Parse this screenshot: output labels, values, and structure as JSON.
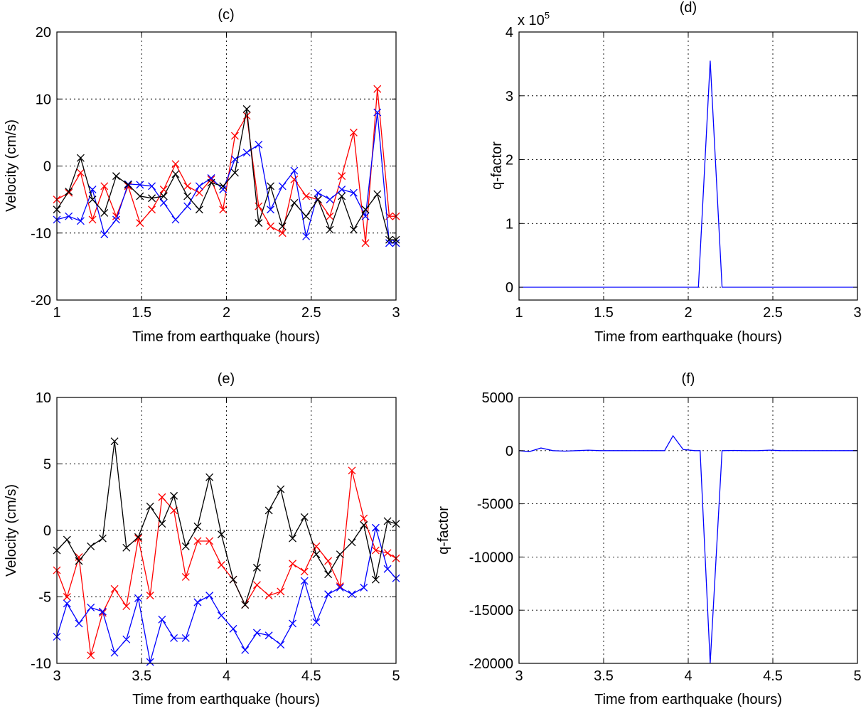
{
  "chart_data": [
    {
      "id": "c",
      "type": "line",
      "title": "(c)",
      "xlabel": "Time from earthquake (hours)",
      "ylabel": "Velocity (cm/s)",
      "xlim": [
        1,
        3
      ],
      "ylim": [
        -20,
        20
      ],
      "xticks": [
        1,
        1.5,
        2,
        2.5,
        3
      ],
      "xtick_labels": [
        "1",
        "1.5",
        "2",
        "2.5",
        "3"
      ],
      "yticks": [
        -20,
        -10,
        0,
        10,
        20
      ],
      "ytick_labels": [
        "-20",
        "-10",
        "0",
        "10",
        "20"
      ],
      "grid": true,
      "markers": "x",
      "series": [
        {
          "name": "red",
          "color": "#ff0000",
          "x": [
            1.0,
            1.07,
            1.14,
            1.21,
            1.28,
            1.35,
            1.42,
            1.49,
            1.56,
            1.63,
            1.7,
            1.77,
            1.84,
            1.91,
            1.98,
            2.05,
            2.12,
            2.19,
            2.26,
            2.33,
            2.4,
            2.47,
            2.54,
            2.61,
            2.68,
            2.75,
            2.82,
            2.89,
            2.96,
            3.0
          ],
          "y": [
            -5,
            -4,
            -1,
            -8,
            -3,
            -7.5,
            -3,
            -8.5,
            -6.5,
            -3.5,
            0.3,
            -3,
            -4,
            -2,
            -6.5,
            4.5,
            7.5,
            -6,
            -9,
            -10,
            -2,
            -4.5,
            -5,
            -7.5,
            -1.5,
            5,
            -11.5,
            11.5,
            -7.5,
            -7.5
          ]
        },
        {
          "name": "blue",
          "color": "#0000ff",
          "x": [
            1.0,
            1.07,
            1.14,
            1.21,
            1.28,
            1.35,
            1.42,
            1.49,
            1.56,
            1.63,
            1.7,
            1.77,
            1.84,
            1.91,
            1.98,
            2.05,
            2.12,
            2.19,
            2.26,
            2.33,
            2.4,
            2.47,
            2.54,
            2.61,
            2.68,
            2.75,
            2.82,
            2.89,
            2.96,
            3.0
          ],
          "y": [
            -8,
            -7.5,
            -8.2,
            -3.5,
            -10.2,
            -8,
            -2.7,
            -2.8,
            -3,
            -5.5,
            -8,
            -6,
            -3,
            -1.8,
            -3.5,
            1,
            2,
            3.2,
            -6.5,
            -3,
            -0.7,
            -10.5,
            -4,
            -5,
            -3.5,
            -4,
            -7.5,
            8,
            -11.5,
            -11.5
          ]
        },
        {
          "name": "black",
          "color": "#000000",
          "x": [
            1.0,
            1.07,
            1.14,
            1.21,
            1.28,
            1.35,
            1.42,
            1.49,
            1.56,
            1.63,
            1.7,
            1.77,
            1.84,
            1.91,
            1.98,
            2.05,
            2.12,
            2.19,
            2.26,
            2.33,
            2.4,
            2.47,
            2.54,
            2.61,
            2.68,
            2.75,
            2.82,
            2.89,
            2.96,
            3.0
          ],
          "y": [
            -6.5,
            -3.8,
            1.2,
            -5,
            -7,
            -1.5,
            -2.8,
            -4.5,
            -4.8,
            -4.5,
            -1.2,
            -4.5,
            -6.5,
            -2.5,
            -3,
            -1,
            8.5,
            -8.5,
            -3,
            -9,
            -5.5,
            -7.5,
            -5,
            -9.5,
            -4.5,
            -9.5,
            -6.5,
            -4.2,
            -11,
            -11
          ]
        }
      ]
    },
    {
      "id": "d",
      "type": "line",
      "title": "(d)",
      "xlabel": "Time from earthquake (hours)",
      "ylabel": "q-factor",
      "multiplier_label": "x 10",
      "multiplier_exponent": "5",
      "xlim": [
        1,
        3
      ],
      "ylim": [
        -0.2,
        4
      ],
      "xticks": [
        1,
        1.5,
        2,
        2.5,
        3
      ],
      "xtick_labels": [
        "1",
        "1.5",
        "2",
        "2.5",
        "3"
      ],
      "yticks": [
        0,
        1,
        2,
        3,
        4
      ],
      "ytick_labels": [
        "0",
        "1",
        "2",
        "3",
        "4"
      ],
      "grid": true,
      "markers": "none",
      "series": [
        {
          "name": "q",
          "color": "#0000ff",
          "x": [
            1.0,
            2.06,
            2.13,
            2.2,
            3.0
          ],
          "y": [
            0,
            0,
            3.55,
            0,
            0
          ]
        }
      ]
    },
    {
      "id": "e",
      "type": "line",
      "title": "(e)",
      "xlabel": "Time from earthquake (hours)",
      "ylabel": "Velocity (cm/s)",
      "xlim": [
        3,
        5
      ],
      "ylim": [
        -10,
        10
      ],
      "xticks": [
        3,
        3.5,
        4,
        4.5,
        5
      ],
      "xtick_labels": [
        "3",
        "3.5",
        "4",
        "4.5",
        "5"
      ],
      "yticks": [
        -10,
        -5,
        0,
        5,
        10
      ],
      "ytick_labels": [
        "-10",
        "-5",
        "0",
        "5",
        "10"
      ],
      "grid": true,
      "markers": "x",
      "series": [
        {
          "name": "red",
          "color": "#ff0000",
          "x": [
            3.0,
            3.06,
            3.13,
            3.2,
            3.27,
            3.34,
            3.41,
            3.48,
            3.55,
            3.62,
            3.69,
            3.76,
            3.83,
            3.9,
            3.97,
            4.04,
            4.11,
            4.18,
            4.25,
            4.32,
            4.39,
            4.46,
            4.53,
            4.6,
            4.67,
            4.74,
            4.81,
            4.88,
            4.95,
            5.0
          ],
          "y": [
            -3,
            -5,
            -2,
            -9.4,
            -6.2,
            -4.4,
            -5.7,
            -0.6,
            -4.9,
            2.5,
            1.5,
            -3.5,
            -0.8,
            -0.8,
            -2.6,
            -3.7,
            -5.6,
            -4.1,
            -4.9,
            -4.6,
            -2.5,
            -3.1,
            -1.2,
            -2.3,
            -4.2,
            4.5,
            0.9,
            -1.5,
            -1.7,
            -2.1
          ]
        },
        {
          "name": "blue",
          "color": "#0000ff",
          "x": [
            3.0,
            3.06,
            3.13,
            3.2,
            3.27,
            3.34,
            3.41,
            3.48,
            3.55,
            3.62,
            3.69,
            3.76,
            3.83,
            3.9,
            3.97,
            4.04,
            4.11,
            4.18,
            4.25,
            4.32,
            4.39,
            4.46,
            4.53,
            4.6,
            4.67,
            4.74,
            4.81,
            4.88,
            4.95,
            5.0
          ],
          "y": [
            -8,
            -5.5,
            -7,
            -5.8,
            -6.1,
            -9.2,
            -8.2,
            -5.1,
            -9.9,
            -6.7,
            -8.1,
            -8.1,
            -5.4,
            -4.9,
            -6.4,
            -7.4,
            -9,
            -7.7,
            -7.9,
            -8.6,
            -7,
            -3.8,
            -6.9,
            -4.8,
            -4.3,
            -4.8,
            -4.3,
            0.2,
            -2.9,
            -3.6
          ]
        },
        {
          "name": "black",
          "color": "#000000",
          "x": [
            3.0,
            3.06,
            3.13,
            3.2,
            3.27,
            3.34,
            3.41,
            3.48,
            3.55,
            3.62,
            3.69,
            3.76,
            3.83,
            3.9,
            3.97,
            4.04,
            4.11,
            4.18,
            4.25,
            4.32,
            4.39,
            4.46,
            4.53,
            4.6,
            4.67,
            4.74,
            4.81,
            4.88,
            4.95,
            5.0
          ],
          "y": [
            -1.5,
            -0.7,
            -2.3,
            -1.2,
            -0.6,
            6.7,
            -1.3,
            -0.5,
            1.8,
            0.5,
            2.6,
            -1.2,
            0.3,
            4,
            -0.3,
            -3.7,
            -5.6,
            -2.8,
            1.5,
            3.1,
            -0.6,
            1,
            -1.8,
            -3.3,
            -1.8,
            -0.9,
            0.4,
            -3.7,
            0.7,
            0.5
          ]
        }
      ]
    },
    {
      "id": "f",
      "type": "line",
      "title": "(f)",
      "xlabel": "Time from earthquake (hours)",
      "ylabel": "q-factor",
      "xlim": [
        3,
        5
      ],
      "ylim": [
        -20000,
        5000
      ],
      "xticks": [
        3,
        3.5,
        4,
        4.5,
        5
      ],
      "xtick_labels": [
        "3",
        "3.5",
        "4",
        "4.5",
        "5"
      ],
      "yticks": [
        -20000,
        -15000,
        -10000,
        -5000,
        0,
        5000
      ],
      "ytick_labels": [
        "-20000",
        "-15000",
        "-10000",
        "-5000",
        "0",
        "5000"
      ],
      "grid": true,
      "markers": "none",
      "series": [
        {
          "name": "q",
          "color": "#0000ff",
          "x": [
            3.0,
            3.06,
            3.13,
            3.2,
            3.27,
            3.34,
            3.41,
            3.48,
            3.55,
            3.62,
            3.69,
            3.76,
            3.83,
            3.86,
            3.91,
            3.97,
            4.04,
            4.07,
            4.13,
            4.2,
            4.27,
            4.34,
            4.41,
            4.48,
            4.55,
            4.62,
            4.69,
            4.76,
            4.83,
            4.9,
            5.0
          ],
          "y": [
            0,
            -100,
            250,
            0,
            -50,
            0,
            50,
            0,
            0,
            0,
            0,
            0,
            0,
            0,
            1400,
            100,
            0,
            0,
            -20000,
            0,
            20,
            0,
            0,
            50,
            0,
            0,
            0,
            0,
            0,
            0,
            0
          ]
        }
      ]
    }
  ]
}
